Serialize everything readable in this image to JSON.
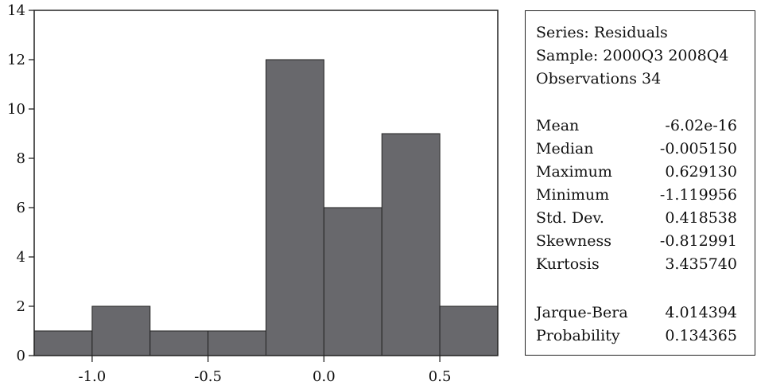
{
  "chart_data": {
    "type": "histogram",
    "bins": [
      {
        "from": -1.25,
        "to": -1.0,
        "count": 1
      },
      {
        "from": -1.0,
        "to": -0.75,
        "count": 2
      },
      {
        "from": -0.75,
        "to": -0.5,
        "count": 1
      },
      {
        "from": -0.5,
        "to": -0.25,
        "count": 1
      },
      {
        "from": -0.25,
        "to": 0.0,
        "count": 12
      },
      {
        "from": 0.0,
        "to": 0.25,
        "count": 6
      },
      {
        "from": 0.25,
        "to": 0.5,
        "count": 9
      },
      {
        "from": 0.5,
        "to": 0.75,
        "count": 2
      }
    ],
    "xlim": [
      -1.25,
      0.75
    ],
    "ylim": [
      0,
      14
    ],
    "xticks": [
      "-1.0",
      "-0.5",
      "0.0",
      "0.5"
    ],
    "xtick_values": [
      -1.0,
      -0.5,
      0.0,
      0.5
    ],
    "yticks": [
      "0",
      "2",
      "4",
      "6",
      "8",
      "10",
      "12",
      "14"
    ],
    "ytick_values": [
      0,
      2,
      4,
      6,
      8,
      10,
      12,
      14
    ],
    "bar_color": "#68686c",
    "grid": false
  },
  "stats": {
    "series": "Series: Residuals",
    "sample": "Sample: 2000Q3 2008Q4",
    "observations": "Observations 34",
    "rows": [
      {
        "label": "Mean",
        "value": "-6.02e-16"
      },
      {
        "label": "Median",
        "value": "-0.005150"
      },
      {
        "label": "Maximum",
        "value": "0.629130"
      },
      {
        "label": "Minimum",
        "value": "-1.119956"
      },
      {
        "label": "Std. Dev.",
        "value": "0.418538"
      },
      {
        "label": "Skewness",
        "value": "-0.812991"
      },
      {
        "label": "Kurtosis",
        "value": "3.435740"
      }
    ],
    "test_rows": [
      {
        "label": "Jarque-Bera",
        "value": "4.014394"
      },
      {
        "label": "Probability",
        "value": "0.134365"
      }
    ]
  }
}
